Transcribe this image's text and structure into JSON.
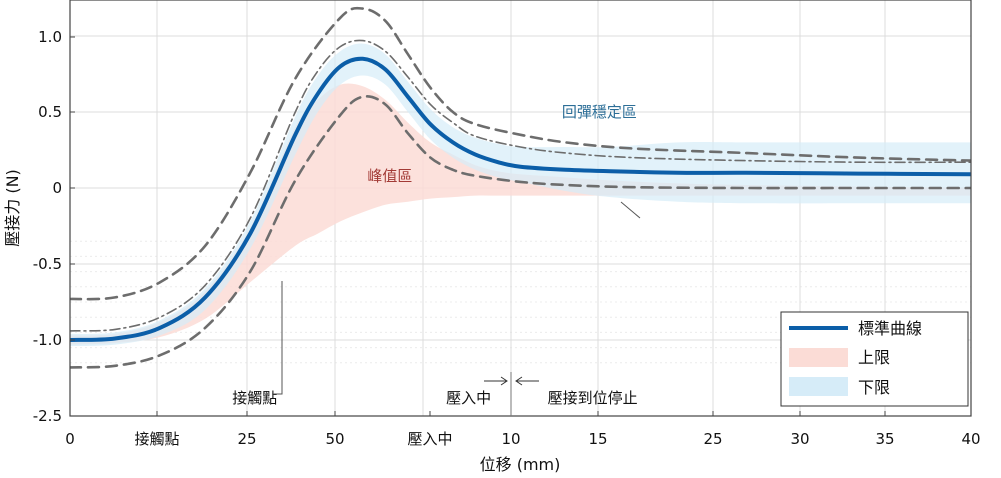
{
  "chart_data": {
    "type": "area",
    "xlabel": "位移 (mm)",
    "ylabel": "壓接力 (N)",
    "x_ticks": [
      "0",
      "接觸點",
      "25",
      "50",
      "壓入中",
      "10",
      "15",
      "25",
      "30",
      "35",
      "40"
    ],
    "y_ticks": [
      "1.0",
      "0.5",
      "0",
      "-0.5",
      "-1.0",
      "-2.5"
    ],
    "grid": true,
    "legend_position": "bottom-right",
    "legend": [
      {
        "label": "標準曲線",
        "swatch": "line",
        "color": "#0b5ea8"
      },
      {
        "label": "上限",
        "swatch": "fill",
        "color": "#fbdcd6"
      },
      {
        "label": "下限",
        "swatch": "fill",
        "color": "#d6ecf8"
      }
    ],
    "series": [
      {
        "name": "標準曲線",
        "color": "#0b5ea8",
        "x": [
          0,
          2,
          4,
          6,
          8,
          10,
          11,
          12,
          13,
          14,
          15,
          16,
          17,
          18,
          19,
          20,
          22,
          24,
          27,
          30,
          35,
          40
        ],
        "y": [
          -1.0,
          -0.99,
          -0.92,
          -0.72,
          -0.3,
          0.35,
          0.62,
          0.8,
          0.85,
          0.78,
          0.6,
          0.42,
          0.3,
          0.22,
          0.17,
          0.14,
          0.12,
          0.11,
          0.1,
          0.1,
          0.095,
          0.09
        ]
      },
      {
        "name": "上限 (outer dashed)",
        "color": "#6d6d6d",
        "x": [
          0,
          2,
          4,
          6,
          8,
          10,
          12,
          13,
          14,
          15,
          16,
          17,
          18,
          20,
          22,
          25,
          30,
          35,
          40
        ],
        "y": [
          -0.73,
          -0.72,
          -0.62,
          -0.38,
          0.1,
          0.72,
          1.12,
          1.18,
          1.1,
          0.88,
          0.66,
          0.5,
          0.42,
          0.35,
          0.3,
          0.26,
          0.23,
          0.2,
          0.18
        ]
      },
      {
        "name": "下限 (outer dashed)",
        "color": "#6d6d6d",
        "x": [
          0,
          2,
          4,
          6,
          8,
          10,
          12,
          13,
          14,
          15,
          16,
          17,
          18,
          20,
          22,
          25,
          30,
          35,
          40
        ],
        "y": [
          -1.18,
          -1.17,
          -1.1,
          -0.92,
          -0.55,
          0.05,
          0.48,
          0.6,
          0.55,
          0.36,
          0.2,
          0.12,
          0.08,
          0.04,
          0.02,
          0.005,
          0.0,
          0.0,
          0.0
        ]
      },
      {
        "name": "上限 (dash-dot)",
        "color": "#6d6d6d",
        "x": [
          0,
          2,
          4,
          6,
          8,
          10,
          11,
          12,
          13,
          14,
          15,
          16,
          17,
          18,
          20,
          22,
          25,
          30,
          35,
          40
        ],
        "y": [
          -0.94,
          -0.93,
          -0.85,
          -0.64,
          -0.2,
          0.5,
          0.77,
          0.93,
          0.97,
          0.9,
          0.73,
          0.55,
          0.43,
          0.34,
          0.27,
          0.23,
          0.2,
          0.18,
          0.17,
          0.17
        ]
      },
      {
        "name": "上限區",
        "color": "#fbdcd6",
        "upper_x": [
          0,
          2,
          4,
          6,
          8,
          10,
          11,
          12,
          13,
          14,
          15,
          16,
          17,
          18,
          19,
          20,
          22,
          24,
          27,
          30,
          35,
          40
        ],
        "upper_y": [
          -0.97,
          -0.96,
          -0.88,
          -0.68,
          -0.26,
          0.4,
          0.58,
          0.68,
          0.67,
          0.58,
          0.43,
          0.3,
          0.22,
          0.15,
          0.11,
          0.09,
          0.07,
          0.05,
          0.03,
          0.02,
          0.01,
          0.0
        ],
        "lower_x": [
          0,
          2,
          4,
          6,
          8,
          10,
          11,
          12,
          13,
          14,
          15,
          16,
          17,
          18,
          19,
          20,
          22,
          24,
          27,
          30,
          35,
          40
        ],
        "lower_y": [
          -1.03,
          -1.02,
          -0.98,
          -0.86,
          -0.62,
          -0.38,
          -0.3,
          -0.22,
          -0.16,
          -0.11,
          -0.09,
          -0.07,
          -0.06,
          -0.05,
          -0.05,
          -0.05,
          -0.05,
          -0.05,
          -0.05,
          -0.05,
          -0.05,
          -0.05
        ]
      },
      {
        "name": "下限區",
        "color": "#d6ecf8",
        "upper_x": [
          0,
          2,
          4,
          6,
          8,
          10,
          11,
          12,
          13,
          14,
          15,
          16,
          17,
          18,
          19,
          20,
          22,
          24,
          27,
          30,
          35,
          40
        ],
        "upper_y": [
          -0.96,
          -0.95,
          -0.87,
          -0.66,
          -0.22,
          0.47,
          0.74,
          0.9,
          0.95,
          0.88,
          0.7,
          0.52,
          0.4,
          0.33,
          0.29,
          0.27,
          0.27,
          0.27,
          0.3,
          0.3,
          0.3,
          0.3
        ],
        "lower_x": [
          0,
          2,
          4,
          6,
          8,
          10,
          11,
          12,
          13,
          14,
          15,
          16,
          17,
          18,
          19,
          20,
          22,
          24,
          27,
          30,
          35,
          40
        ],
        "lower_y": [
          -1.04,
          -1.03,
          -0.97,
          -0.8,
          -0.4,
          0.22,
          0.5,
          0.68,
          0.74,
          0.68,
          0.5,
          0.32,
          0.2,
          0.12,
          0.07,
          0.04,
          -0.02,
          -0.06,
          -0.09,
          -0.1,
          -0.1,
          -0.1
        ]
      }
    ],
    "annotations": [
      {
        "text": "回彈穩定區",
        "color": "#2c6e97",
        "x": 23.5,
        "y": 0.5
      },
      {
        "text": "峰值區",
        "color": "#a23a36",
        "x": 14.2,
        "y": 0.08
      },
      {
        "text": "接觸點",
        "color": "#111111",
        "x": 8.2,
        "y": -1.38
      },
      {
        "text": "壓入中",
        "color": "#111111",
        "x": 17.7,
        "y": -1.38
      },
      {
        "text": "壓接到位停止",
        "color": "#111111",
        "x": 23.2,
        "y": -1.38
      }
    ]
  }
}
